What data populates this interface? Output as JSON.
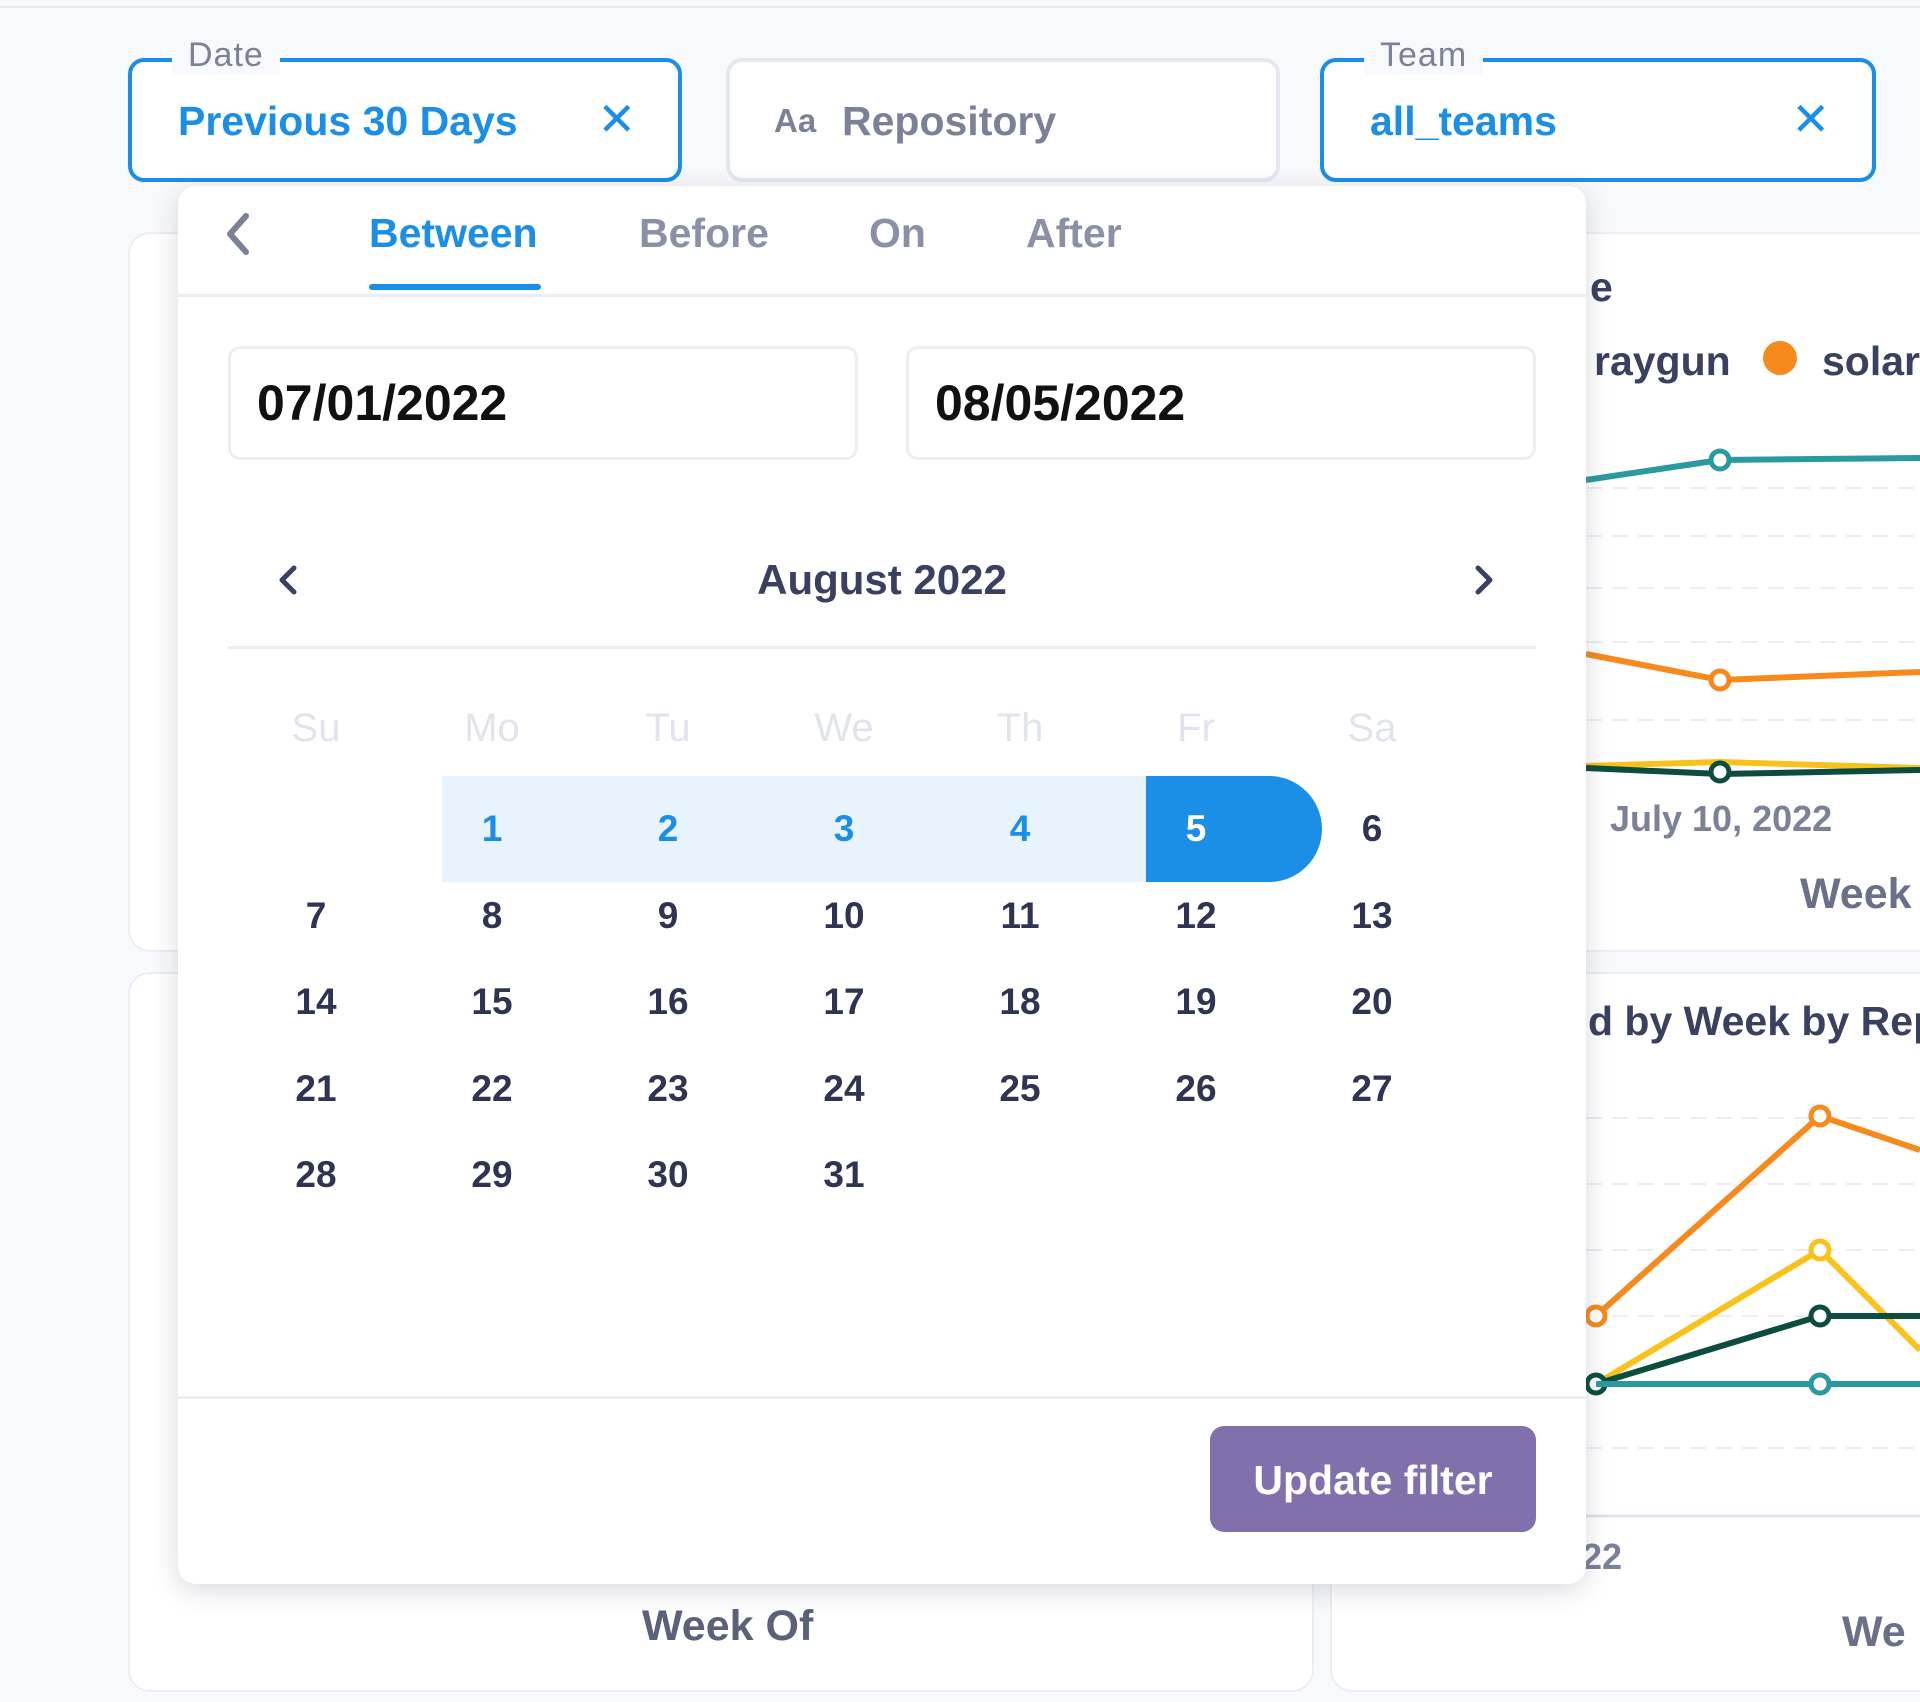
{
  "filters": {
    "date": {
      "legend": "Date",
      "value": "Previous 30 Days",
      "clear_glyph": "✕"
    },
    "repository": {
      "icon_text": "Aa",
      "placeholder": "Repository"
    },
    "team": {
      "legend": "Team",
      "value": "all_teams",
      "clear_glyph": "✕"
    }
  },
  "date_picker": {
    "tabs": [
      {
        "label": "Between",
        "active": true
      },
      {
        "label": "Before",
        "active": false
      },
      {
        "label": "On",
        "active": false
      },
      {
        "label": "After",
        "active": false
      }
    ],
    "start_date": "07/01/2022",
    "end_date": "08/05/2022",
    "month_label": "August 2022",
    "weekdays": [
      "Su",
      "Mo",
      "Tu",
      "We",
      "Th",
      "Fr",
      "Sa"
    ],
    "days": [
      "1",
      "2",
      "3",
      "4",
      "5",
      "6",
      "7",
      "8",
      "9",
      "10",
      "11",
      "12",
      "13",
      "14",
      "15",
      "16",
      "17",
      "18",
      "19",
      "20",
      "21",
      "22",
      "23",
      "24",
      "25",
      "26",
      "27",
      "28",
      "29",
      "30",
      "31"
    ],
    "first_weekday_index": 1,
    "range_days_in_month": [
      1,
      2,
      3,
      4
    ],
    "selected_day": 5,
    "update_button": "Update filter"
  },
  "background": {
    "top_chart": {
      "title_fragment": "e",
      "legend": [
        "raygun",
        "solar"
      ],
      "x_tick": "July 10, 2022",
      "x_label_fragment": "Week"
    },
    "bottom_chart": {
      "title_fragment": "d by Week by Rep",
      "x_tick_fragment": "22",
      "x_label_fragment": "We"
    },
    "left_card": {
      "x_label": "Week Of"
    }
  },
  "colors": {
    "accent": "#1b8ee7",
    "range_band": "#e7f3fd",
    "update_button": "#8270ad",
    "series_teal": "#2b9aa0",
    "series_orange": "#f78a1d",
    "series_yellow": "#f9c21a",
    "series_dark_green": "#0d4d3f"
  }
}
